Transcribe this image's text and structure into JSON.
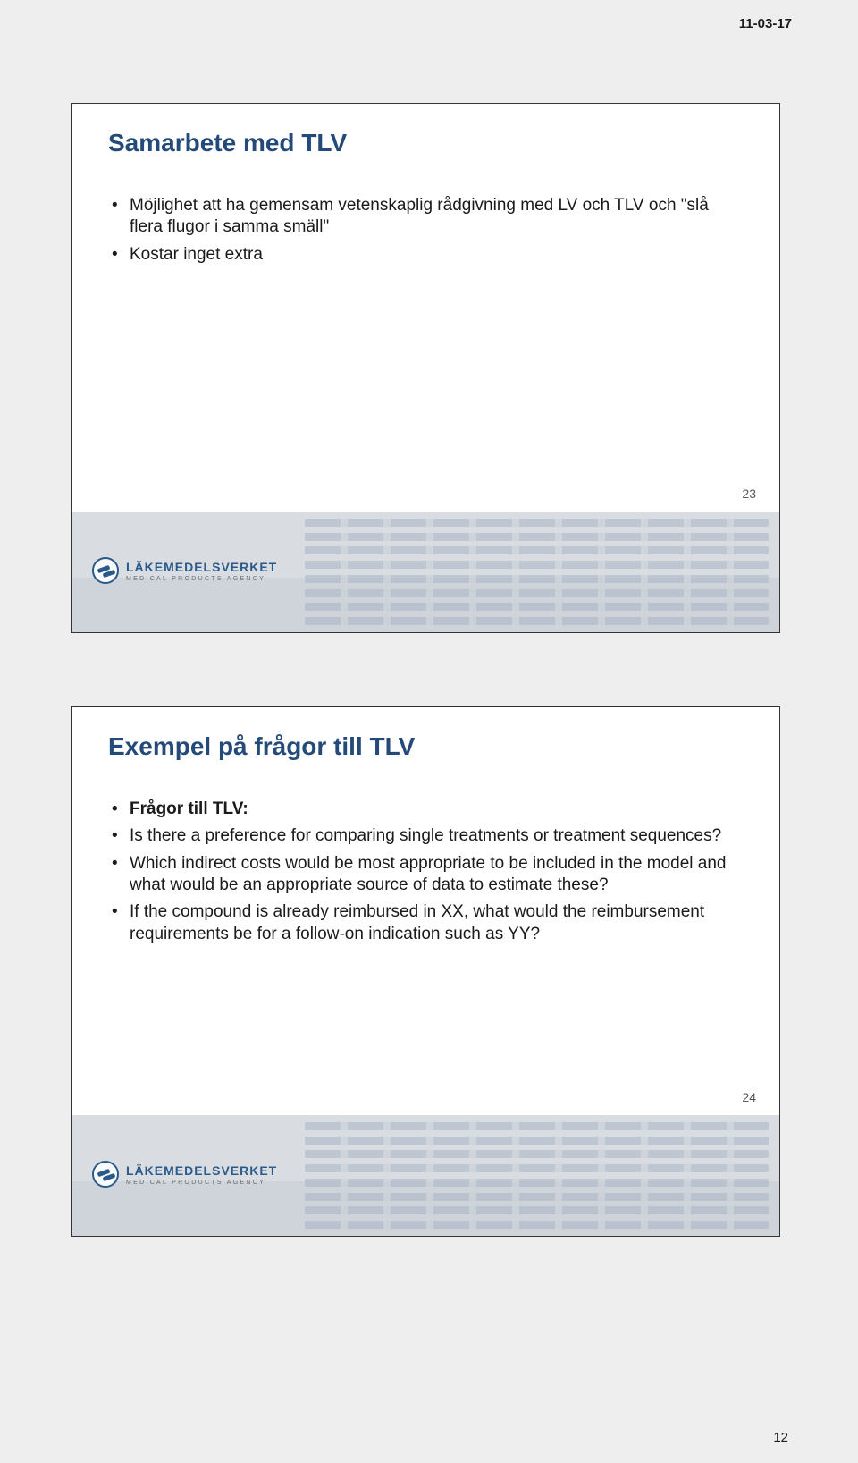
{
  "header_date": "11-03-17",
  "page_number": "12",
  "logo": {
    "main": "LÄKEMEDELSVERKET",
    "sub": "MEDICAL PRODUCTS AGENCY"
  },
  "slides": [
    {
      "number": "23",
      "title": "Samarbete med TLV",
      "bullets": [
        "Möjlighet att ha gemensam vetenskaplig rådgivning med LV och TLV och \"slå flera flugor i samma smäll\"",
        "Kostar inget extra"
      ]
    },
    {
      "number": "24",
      "title": "Exempel på frågor till TLV",
      "bullets": [
        "Frågor till TLV:",
        "Is there a preference for comparing single treatments or treatment sequences?",
        "Which indirect costs would be most appropriate to be included in the model and what would be an appropriate source of data to estimate these?",
        "If the compound is already reimbursed in XX, what would the reimbursement requirements be for a follow-on indication such as YY?"
      ]
    }
  ]
}
